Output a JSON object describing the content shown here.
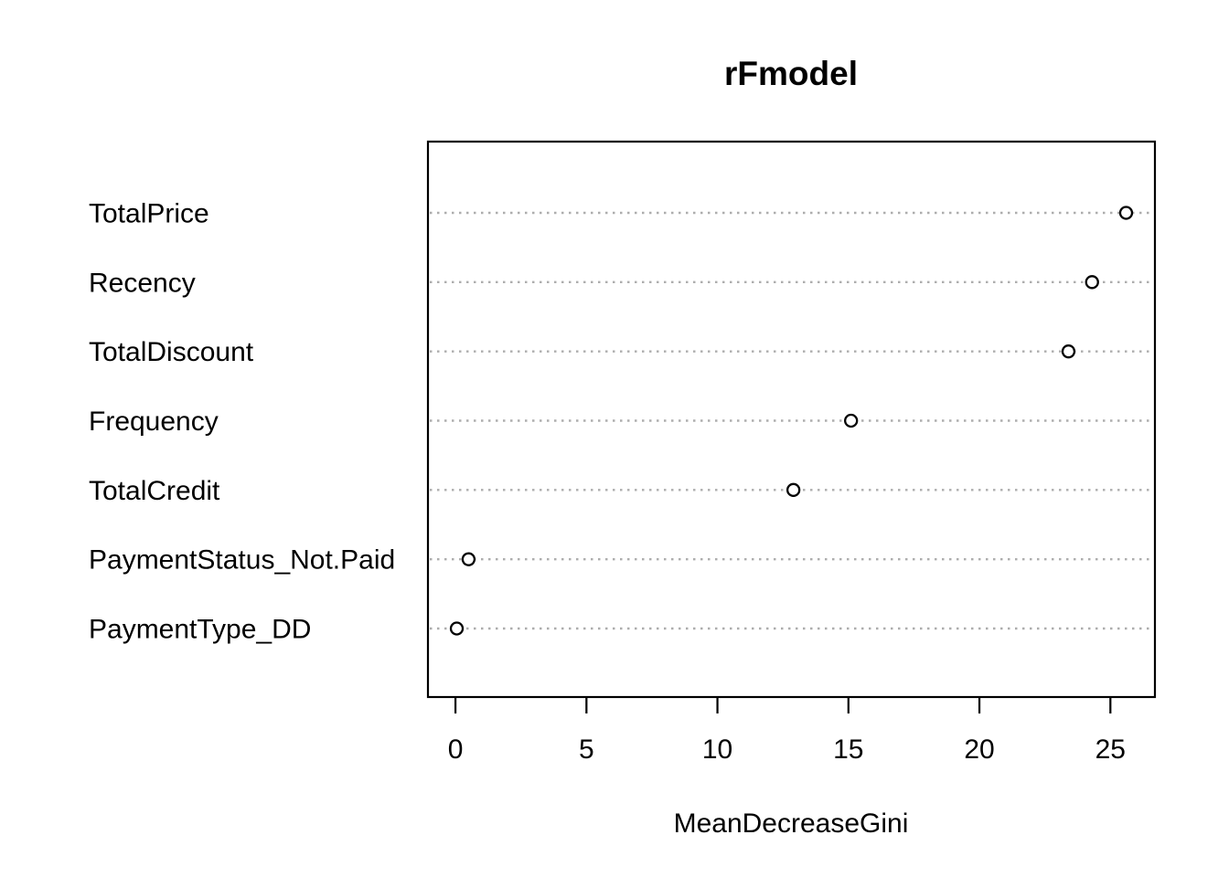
{
  "chart_data": {
    "type": "scatter",
    "subtype": "dotchart-variable-importance",
    "title": "rFmodel",
    "xlabel": "MeanDecreaseGini",
    "ylabel": "",
    "categories": [
      "TotalPrice",
      "Recency",
      "TotalDiscount",
      "Frequency",
      "TotalCredit",
      "PaymentStatus_Not.Paid",
      "PaymentType_DD"
    ],
    "values": [
      25.6,
      24.3,
      23.4,
      15.1,
      12.9,
      0.5,
      0.05
    ],
    "xticks": [
      0,
      5,
      10,
      15,
      20,
      25
    ],
    "xlim": [
      -1.05,
      26.7
    ],
    "grid": "horizontal-dotted",
    "legend": "none",
    "point_style": "open-circle",
    "colors": {
      "background": "#ffffff",
      "point_stroke": "#000000",
      "point_fill": "#ffffff",
      "grid": "#adadad",
      "axis": "#000000",
      "text": "#000000"
    }
  }
}
